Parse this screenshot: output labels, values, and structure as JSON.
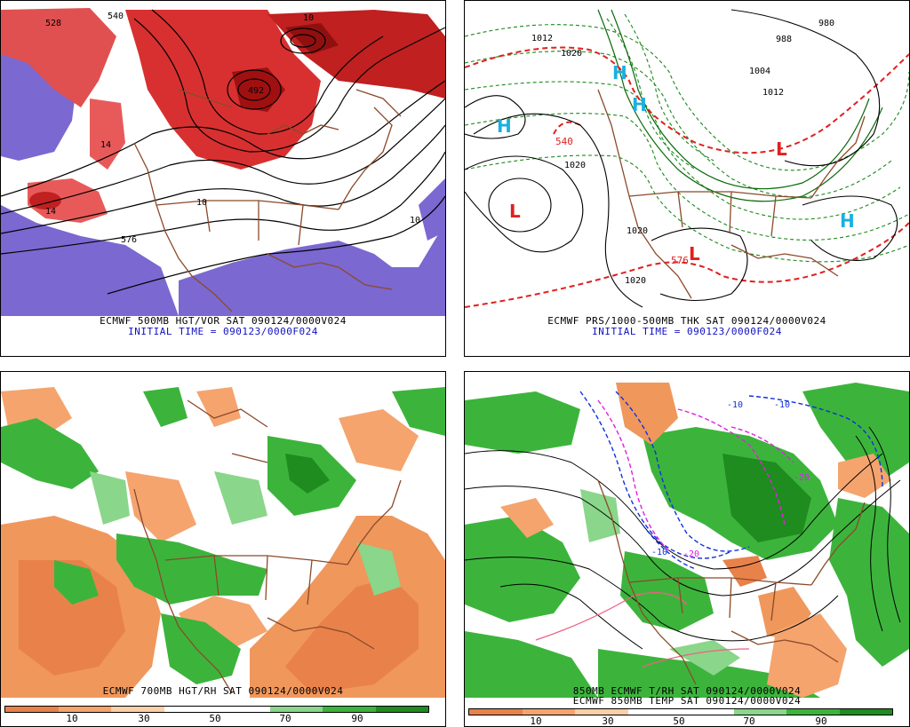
{
  "panels": [
    {
      "id": "p1",
      "caption": "ECMWF 500MB HGT/VOR SAT 090124/0000V024",
      "subcaption": "INITIAL TIME = 090123/0000F024",
      "labels": [
        "528",
        "540",
        "576",
        "10",
        "14",
        "14",
        "492",
        "10",
        "10"
      ]
    },
    {
      "id": "p2",
      "caption": "ECMWF PRS/1000-500MB THK SAT 090124/0000V024",
      "subcaption": "INITIAL TIME = 090123/0000F024",
      "labels": [
        "1020",
        "1012",
        "1020",
        "1020",
        "1020",
        "1004",
        "1012",
        "988",
        "980",
        "540",
        "576",
        "H",
        "H",
        "H",
        "H",
        "L",
        "L",
        "L"
      ]
    },
    {
      "id": "p3",
      "caption": "ECMWF 700MB HGT/RH SAT 090124/0000V024",
      "subcaption": ""
    },
    {
      "id": "p4",
      "caption": "850MB ECMWF T/RH SAT 090124/0000V024",
      "subcaption": "ECMWF 850MB TEMP SAT 090124/0000V024",
      "labels": [
        "-10",
        "-10",
        "-20",
        "-10",
        "-20"
      ]
    }
  ],
  "colorbar": {
    "ticks": [
      "10",
      "30",
      "50",
      "70",
      "90"
    ],
    "colors": [
      "#e8824a",
      "#f5a46e",
      "#fbd0a8",
      "#ffffff",
      "#ffffff",
      "#8ad68a",
      "#3cb43c",
      "#1e8c1e"
    ]
  }
}
